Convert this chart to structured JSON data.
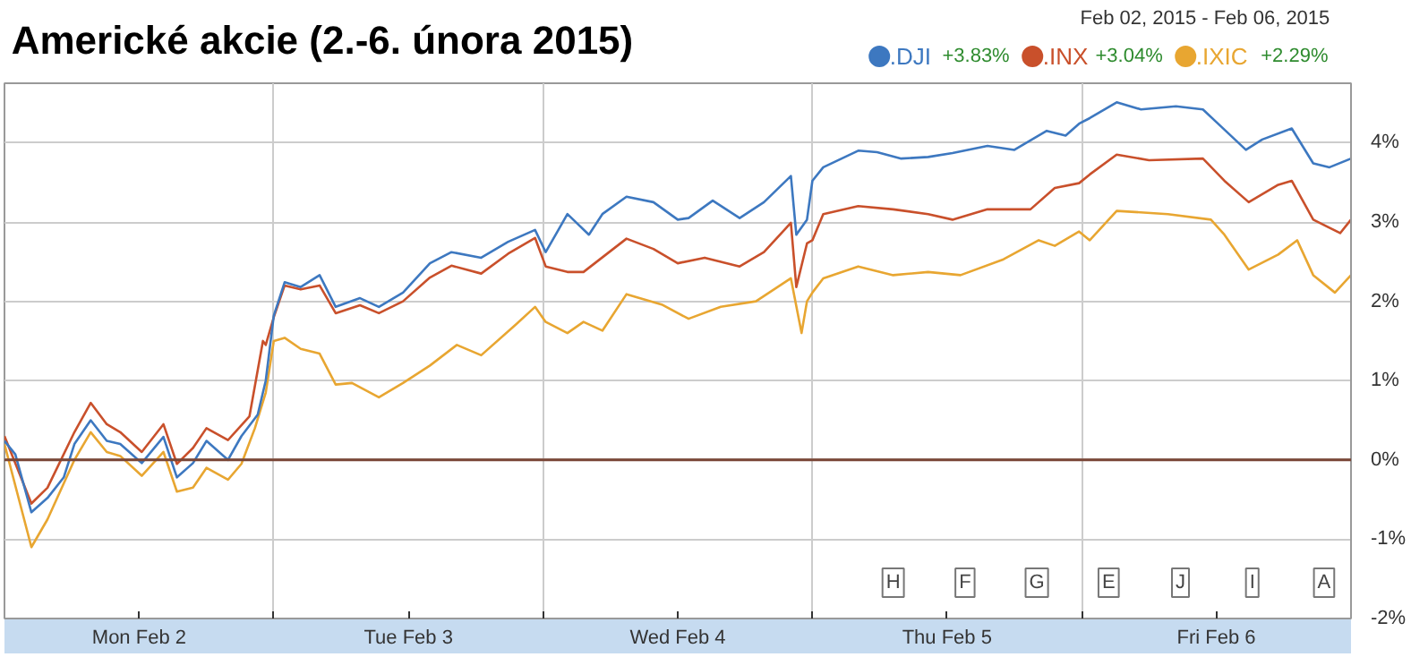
{
  "chart_data": {
    "type": "line",
    "title": "Americké akcie (2.-6. února 2015)",
    "subtitle": "Feb 02, 2015  -  Feb 06, 2015",
    "xlim": [
      "2015-02-02T00:00",
      "2015-02-07T00:00"
    ],
    "ylim": [
      -2,
      4.75
    ],
    "xticks": [
      {
        "value": "2015-02-02T12:00",
        "label": "Mon Feb 2"
      },
      {
        "value": "2015-02-03T00:00",
        "label": null
      },
      {
        "value": "2015-02-03T12:00",
        "label": "Tue Feb 3"
      },
      {
        "value": "2015-02-04T00:00",
        "label": null
      },
      {
        "value": "2015-02-04T12:00",
        "label": "Wed Feb 4"
      },
      {
        "value": "2015-02-05T00:00",
        "label": null
      },
      {
        "value": "2015-02-05T12:00",
        "label": "Thu Feb 5"
      },
      {
        "value": "2015-02-06T00:00",
        "label": null
      },
      {
        "value": "2015-02-06T12:00",
        "label": "Fri Feb 6"
      }
    ],
    "yticks": [
      {
        "value": -2,
        "label": "-2%"
      },
      {
        "value": -1,
        "label": "-1%"
      },
      {
        "value": 0,
        "label": "0%"
      },
      {
        "value": 1,
        "label": "1%"
      },
      {
        "value": 2,
        "label": "2%"
      },
      {
        "value": 3,
        "label": "3%"
      },
      {
        "value": 4,
        "label": "4%"
      }
    ],
    "grid": true,
    "legend": "top right",
    "marker": "none",
    "line_style": "solid",
    "ref_lines": [
      {
        "axis": "y",
        "value": 0,
        "color": "#7a4636"
      }
    ],
    "series": [
      {
        "name": ".DJI",
        "color": "#3d78c0",
        "x": [
          "2015-02-02T00:00",
          "2015-02-02T00:58",
          "2015-02-02T02:24",
          "2015-02-02T03:50",
          "2015-02-02T05:17",
          "2015-02-02T06:14",
          "2015-02-02T07:41",
          "2015-02-02T09:07",
          "2015-02-02T10:19",
          "2015-02-02T12:14",
          "2015-02-02T14:10",
          "2015-02-02T15:22",
          "2015-02-02T16:48",
          "2015-02-02T18:00",
          "2015-02-02T19:55",
          "2015-02-02T21:07",
          "2015-02-02T22:34",
          "2015-02-02T23:17",
          "2015-02-03T00:00",
          "2015-02-03T00:58",
          "2015-02-03T02:24",
          "2015-02-03T04:05",
          "2015-02-03T05:31",
          "2015-02-03T07:41",
          "2015-02-03T09:22",
          "2015-02-03T11:31",
          "2015-02-03T13:55",
          "2015-02-03T15:50",
          "2015-02-03T18:29",
          "2015-02-03T20:53",
          "2015-02-03T23:17",
          "2015-02-04T00:14",
          "2015-02-04T02:10",
          "2015-02-04T04:05",
          "2015-02-04T05:17",
          "2015-02-04T07:26",
          "2015-02-04T09:50",
          "2015-02-04T12:00",
          "2015-02-04T12:58",
          "2015-02-04T15:07",
          "2015-02-04T17:31",
          "2015-02-04T19:41",
          "2015-02-04T22:05",
          "2015-02-04T22:34",
          "2015-02-04T23:31",
          "2015-02-05T00:00",
          "2015-02-05T00:58",
          "2015-02-05T04:05",
          "2015-02-05T05:46",
          "2015-02-05T07:55",
          "2015-02-05T10:19",
          "2015-02-05T12:29",
          "2015-02-05T15:36",
          "2015-02-05T18:00",
          "2015-02-05T20:53",
          "2015-02-05T22:34",
          "2015-02-05T23:46",
          "2015-02-06T00:43",
          "2015-02-06T03:07",
          "2015-02-06T05:17",
          "2015-02-06T08:24",
          "2015-02-06T10:48",
          "2015-02-06T12:00",
          "2015-02-06T14:38",
          "2015-02-06T16:05",
          "2015-02-06T18:43",
          "2015-02-06T20:38",
          "2015-02-06T22:05",
          "2015-02-07T00:00"
        ],
        "values": [
          0.24,
          0.07,
          -0.66,
          -0.48,
          -0.22,
          0.2,
          0.5,
          0.24,
          0.2,
          -0.04,
          0.29,
          -0.22,
          -0.04,
          0.24,
          0,
          0.3,
          0.57,
          1.0,
          1.82,
          2.24,
          2.18,
          2.33,
          1.93,
          2.04,
          1.93,
          2.11,
          2.48,
          2.62,
          2.55,
          2.75,
          2.9,
          2.62,
          3.1,
          2.84,
          3.1,
          3.32,
          3.25,
          3.03,
          3.05,
          3.27,
          3.05,
          3.25,
          3.58,
          2.84,
          3.03,
          3.52,
          3.69,
          3.9,
          3.88,
          3.8,
          3.82,
          3.87,
          3.96,
          3.91,
          4.15,
          4.09,
          4.24,
          4.31,
          4.51,
          4.42,
          4.46,
          4.42,
          4.26,
          3.91,
          4.04,
          4.18,
          3.74,
          3.69,
          3.8
        ]
      },
      {
        "name": ".INX",
        "color": "#c9502b",
        "x": [
          "2015-02-02T00:00",
          "2015-02-02T02:24",
          "2015-02-02T03:50",
          "2015-02-02T06:14",
          "2015-02-02T07:41",
          "2015-02-02T09:07",
          "2015-02-02T10:19",
          "2015-02-02T12:14",
          "2015-02-02T14:10",
          "2015-02-02T15:22",
          "2015-02-02T16:48",
          "2015-02-02T18:00",
          "2015-02-02T19:55",
          "2015-02-02T21:50",
          "2015-02-02T23:02",
          "2015-02-02T23:17",
          "2015-02-03T00:00",
          "2015-02-03T00:58",
          "2015-02-03T02:24",
          "2015-02-03T04:05",
          "2015-02-03T05:31",
          "2015-02-03T07:41",
          "2015-02-03T09:22",
          "2015-02-03T11:31",
          "2015-02-03T13:55",
          "2015-02-03T15:50",
          "2015-02-03T18:29",
          "2015-02-03T20:53",
          "2015-02-03T23:17",
          "2015-02-04T00:14",
          "2015-02-04T02:10",
          "2015-02-04T03:36",
          "2015-02-04T07:26",
          "2015-02-04T09:50",
          "2015-02-04T12:00",
          "2015-02-04T14:24",
          "2015-02-04T17:31",
          "2015-02-04T19:41",
          "2015-02-04T22:05",
          "2015-02-04T22:34",
          "2015-02-04T23:31",
          "2015-02-05T00:00",
          "2015-02-05T00:58",
          "2015-02-05T04:05",
          "2015-02-05T07:12",
          "2015-02-05T10:19",
          "2015-02-05T12:29",
          "2015-02-05T15:36",
          "2015-02-05T19:26",
          "2015-02-05T21:36",
          "2015-02-05T23:46",
          "2015-02-06T00:43",
          "2015-02-06T03:07",
          "2015-02-06T06:00",
          "2015-02-06T10:48",
          "2015-02-06T12:43",
          "2015-02-06T14:53",
          "2015-02-06T17:31",
          "2015-02-06T18:43",
          "2015-02-06T20:38",
          "2015-02-06T23:02",
          "2015-02-07T00:00"
        ],
        "values": [
          0.3,
          -0.55,
          -0.35,
          0.35,
          0.72,
          0.45,
          0.35,
          0.1,
          0.45,
          -0.05,
          0.15,
          0.4,
          0.25,
          0.55,
          1.5,
          1.45,
          1.8,
          2.2,
          2.15,
          2.2,
          1.85,
          1.95,
          1.85,
          2.0,
          2.3,
          2.45,
          2.35,
          2.6,
          2.8,
          2.44,
          2.37,
          2.37,
          2.79,
          2.66,
          2.48,
          2.55,
          2.44,
          2.62,
          2.99,
          2.18,
          2.73,
          2.77,
          3.1,
          3.2,
          3.16,
          3.1,
          3.03,
          3.16,
          3.16,
          3.43,
          3.49,
          3.6,
          3.85,
          3.78,
          3.8,
          3.52,
          3.25,
          3.47,
          3.52,
          3.03,
          2.86,
          3.03
        ]
      },
      {
        "name": ".IXIC",
        "color": "#e8a631",
        "x": [
          "2015-02-02T00:00",
          "2015-02-02T02:24",
          "2015-02-02T03:50",
          "2015-02-02T06:14",
          "2015-02-02T07:41",
          "2015-02-02T09:07",
          "2015-02-02T10:19",
          "2015-02-02T12:14",
          "2015-02-02T14:10",
          "2015-02-02T15:22",
          "2015-02-02T16:48",
          "2015-02-02T18:00",
          "2015-02-02T19:55",
          "2015-02-02T21:07",
          "2015-02-02T22:19",
          "2015-02-02T23:17",
          "2015-02-03T00:00",
          "2015-02-03T00:58",
          "2015-02-03T02:24",
          "2015-02-03T04:05",
          "2015-02-03T05:31",
          "2015-02-03T06:58",
          "2015-02-03T09:22",
          "2015-02-03T11:31",
          "2015-02-03T13:55",
          "2015-02-03T16:19",
          "2015-02-03T18:29",
          "2015-02-03T21:36",
          "2015-02-03T23:17",
          "2015-02-04T00:14",
          "2015-02-04T02:10",
          "2015-02-04T03:36",
          "2015-02-04T05:17",
          "2015-02-04T07:26",
          "2015-02-04T10:34",
          "2015-02-04T12:58",
          "2015-02-04T15:50",
          "2015-02-04T18:58",
          "2015-02-04T22:05",
          "2015-02-04T23:02",
          "2015-02-04T23:31",
          "2015-02-05T00:00",
          "2015-02-05T00:58",
          "2015-02-05T04:05",
          "2015-02-05T07:12",
          "2015-02-05T10:19",
          "2015-02-05T13:12",
          "2015-02-05T17:02",
          "2015-02-05T20:10",
          "2015-02-05T21:36",
          "2015-02-05T23:46",
          "2015-02-06T00:43",
          "2015-02-06T03:07",
          "2015-02-06T07:41",
          "2015-02-06T11:31",
          "2015-02-06T12:43",
          "2015-02-06T14:53",
          "2015-02-06T17:31",
          "2015-02-06T19:12",
          "2015-02-06T20:38",
          "2015-02-06T22:34",
          "2015-02-07T00:00"
        ],
        "values": [
          0.2,
          -1.1,
          -0.75,
          0.0,
          0.35,
          0.1,
          0.05,
          -0.2,
          0.1,
          -0.4,
          -0.35,
          -0.1,
          -0.25,
          -0.05,
          0.4,
          0.85,
          1.5,
          1.54,
          1.4,
          1.34,
          0.95,
          0.97,
          0.79,
          0.97,
          1.19,
          1.45,
          1.32,
          1.71,
          1.93,
          1.74,
          1.6,
          1.74,
          1.63,
          2.09,
          1.96,
          1.78,
          1.93,
          2.0,
          2.29,
          1.6,
          2.0,
          2.11,
          2.29,
          2.44,
          2.33,
          2.37,
          2.33,
          2.53,
          2.77,
          2.7,
          2.88,
          2.77,
          3.14,
          3.1,
          3.03,
          2.84,
          2.4,
          2.59,
          2.77,
          2.33,
          2.11,
          2.33
        ]
      }
    ],
    "annotations": [
      "+3.83%",
      "+3.04%",
      "+2.29%",
      "H",
      "F",
      "G",
      "E",
      "J",
      "I",
      "A"
    ]
  }
}
